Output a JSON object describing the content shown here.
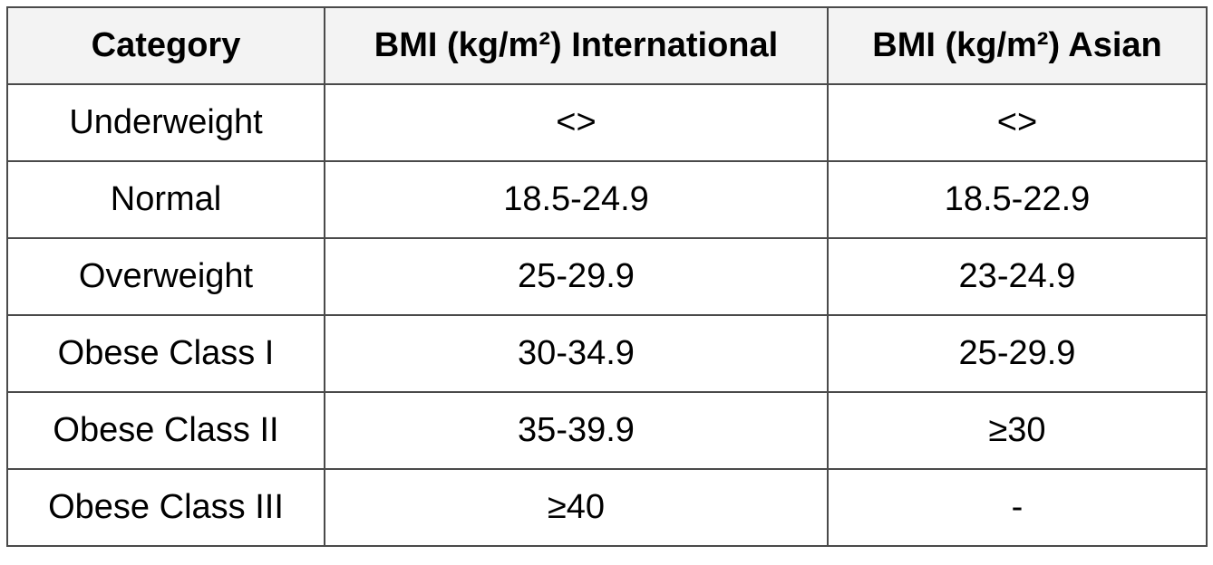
{
  "table": {
    "headers": [
      "Category",
      "BMI (kg/m²) International",
      "BMI (kg/m²) Asian"
    ],
    "rows": [
      [
        "Underweight",
        "<>",
        "<>"
      ],
      [
        "Normal",
        "18.5-24.9",
        "18.5-22.9"
      ],
      [
        "Overweight",
        "25-29.9",
        "23-24.9"
      ],
      [
        "Obese Class I",
        "30-34.9",
        "25-29.9"
      ],
      [
        "Obese Class II",
        "35-39.9",
        "≥30"
      ],
      [
        "Obese Class III",
        "≥40",
        "-"
      ]
    ]
  }
}
